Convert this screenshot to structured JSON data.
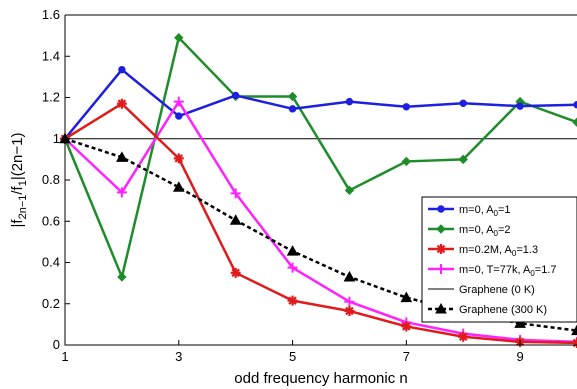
{
  "chart_data": {
    "type": "line",
    "xlabel": "odd frequency harmonic n",
    "ylabel_main": "|f",
    "ylabel_sub1": "2n−1",
    "ylabel_mid": "/f",
    "ylabel_sub2": "1",
    "ylabel_end": "|(2n−1)",
    "xlim": [
      1,
      10
    ],
    "ylim": [
      0,
      1.6
    ],
    "x_ticks": [
      1,
      3,
      5,
      7,
      9
    ],
    "y_ticks": [
      0,
      0.2,
      0.4,
      0.6,
      0.8,
      1,
      1.2,
      1.4,
      1.6
    ],
    "y_tick_labels": [
      "0",
      "0.2",
      "0.4",
      "0.6",
      "0.8",
      "1",
      "1.2",
      "1.4",
      "1.6"
    ],
    "legend_position": "right",
    "series": [
      {
        "label_main": "m=0, A",
        "label_sub": "0",
        "label_end": "=1",
        "color": "#1f1fe0",
        "marker": "circle",
        "dash": "none",
        "x": [
          1,
          2,
          3,
          4,
          5,
          6,
          7,
          8,
          9,
          10
        ],
        "y": [
          1.0,
          1.335,
          1.11,
          1.21,
          1.145,
          1.18,
          1.155,
          1.172,
          1.158,
          1.165
        ]
      },
      {
        "label_main": "m=0, A",
        "label_sub": "0",
        "label_end": "=2",
        "color": "#1e8c2a",
        "marker": "diamond",
        "dash": "none",
        "x": [
          1,
          2,
          3,
          4,
          5,
          6,
          7,
          8,
          9,
          10
        ],
        "y": [
          1.0,
          0.33,
          1.49,
          1.205,
          1.205,
          0.75,
          0.89,
          0.9,
          1.18,
          1.08
        ]
      },
      {
        "label_main": "m=0.2M, A",
        "label_sub": "0",
        "label_end": "=1.3",
        "color": "#e01b1b",
        "marker": "star",
        "dash": "none",
        "x": [
          1,
          2,
          3,
          4,
          5,
          6,
          7,
          8,
          9,
          10
        ],
        "y": [
          1.0,
          1.17,
          0.905,
          0.35,
          0.215,
          0.165,
          0.09,
          0.04,
          0.015,
          0.01
        ]
      },
      {
        "label_main": "m=0, T=77k, A",
        "label_sub": "0",
        "label_end": "=1.7",
        "color": "#ff22ff",
        "marker": "plus",
        "dash": "none",
        "x": [
          1,
          2,
          3,
          4,
          5,
          6,
          7,
          8,
          9,
          10
        ],
        "y": [
          1.0,
          0.74,
          1.18,
          0.735,
          0.375,
          0.21,
          0.11,
          0.055,
          0.025,
          0.015
        ]
      },
      {
        "label_main": "Graphene (0 K)",
        "label_sub": "",
        "label_end": "",
        "color": "#000000",
        "marker": "none",
        "dash": "none",
        "x": [
          1,
          10
        ],
        "y": [
          1.0,
          1.0
        ]
      },
      {
        "label_main": "Graphene (300 K)",
        "label_sub": "",
        "label_end": "",
        "color": "#000000",
        "marker": "triangle",
        "dash": "dashed",
        "x": [
          1,
          2,
          3,
          4,
          5,
          6,
          7,
          8,
          9,
          10
        ],
        "y": [
          1.0,
          0.91,
          0.765,
          0.605,
          0.455,
          0.33,
          0.23,
          0.16,
          0.105,
          0.07
        ]
      }
    ]
  }
}
